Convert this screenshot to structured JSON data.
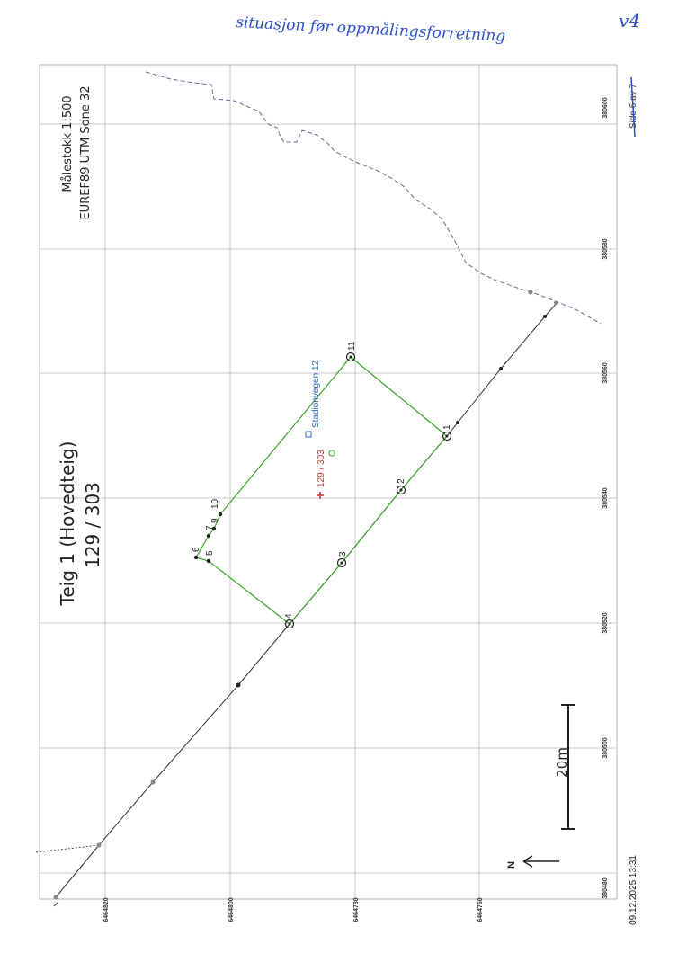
{
  "annotation": {
    "handwritten_title": "situasjon før oppmålingsforretning",
    "version": "v4",
    "page": "Side 6 av 7"
  },
  "map": {
    "title_line1": "Teig 1 (Hovedteig)",
    "title_line2": "129 / 303",
    "scale": "Målestokk 1:500",
    "crs": "EUREF89 UTM Sone 32",
    "north_label": "N",
    "scalebar_label": "20m",
    "timestamp": "09.12.2025 13:31",
    "road_label": "Stadionvegen 12",
    "parcel_label": "129 / 303",
    "easting_ticks": [
      "380480",
      "380500",
      "380520",
      "380540",
      "380560",
      "380580",
      "380600"
    ],
    "northing_ticks": [
      "6464820",
      "6464800",
      "6464780",
      "6464760"
    ],
    "point_labels": [
      "1",
      "2",
      "3",
      "4",
      "5",
      "6",
      "7",
      "9",
      "10",
      "11"
    ],
    "colors": {
      "boundary": "#3aa52a",
      "road": "#2e68b8",
      "parcel_marker": "#d0312d",
      "handwriting": "#2a4fc9",
      "coastline": "#5a6f8a"
    }
  }
}
